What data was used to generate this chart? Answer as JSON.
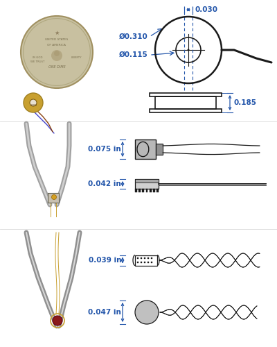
{
  "bg_color": "#ffffff",
  "blue": "#2255aa",
  "dark": "#1a1a1a",
  "coin_color": "#c0b88a",
  "coin_edge": "#a09870",
  "sensor_gold": "#c8a030",
  "sensor_dark_red": "#8B1a1a",
  "gray_sensor": "#b0b0b0",
  "gray_dark": "#808080",
  "figsize": [
    4.0,
    5.0
  ],
  "dpi": 100,
  "dims": {
    "od": "Ø0.310",
    "id": "Ø0.115",
    "w": "0.030",
    "h": "0.185",
    "s1": "0.075 in",
    "s2": "0.042 in",
    "s3": "0.039 in",
    "s4": "0.047 in"
  }
}
